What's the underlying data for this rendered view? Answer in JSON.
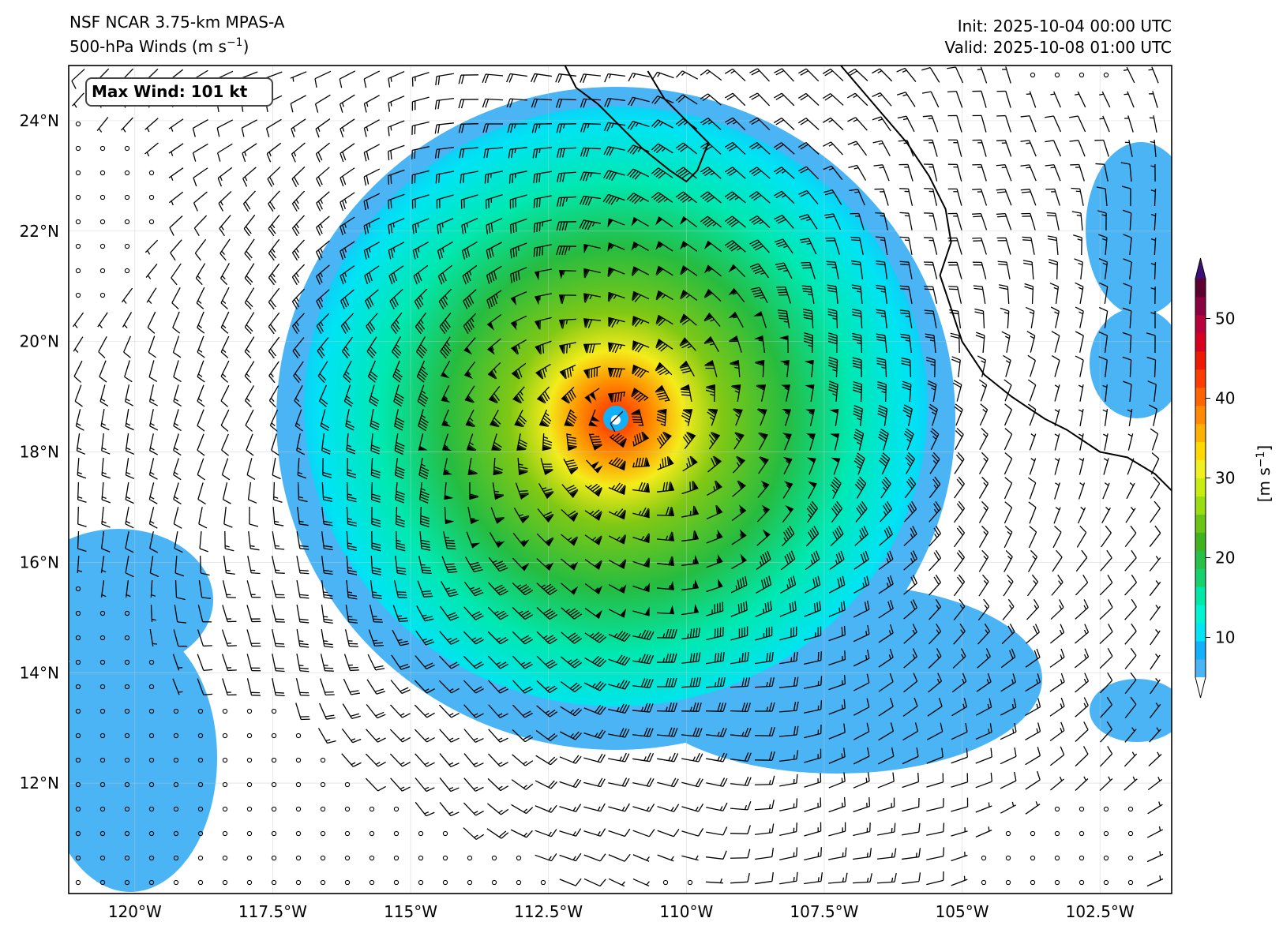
{
  "header": {
    "model": "NSF NCAR 3.75-km MPAS-A",
    "field_prefix": "500-hPa Winds (m s",
    "field_exp": "−1",
    "field_suffix": ")",
    "init": "Init: 2025-10-04 00:00 UTC",
    "valid": "Valid: 2025-10-08 01:00 UTC"
  },
  "annotation": {
    "max_wind": "Max Wind: 101 kt"
  },
  "map": {
    "lon_range": [
      -121.2,
      -101.2
    ],
    "lat_range": [
      10.0,
      25.0
    ],
    "lat_ticks": [
      {
        "lat": 24,
        "label": "24°N"
      },
      {
        "lat": 22,
        "label": "22°N"
      },
      {
        "lat": 20,
        "label": "20°N"
      },
      {
        "lat": 18,
        "label": "18°N"
      },
      {
        "lat": 16,
        "label": "16°N"
      },
      {
        "lat": 14,
        "label": "14°N"
      },
      {
        "lat": 12,
        "label": "12°N"
      }
    ],
    "lon_ticks": [
      {
        "lon": -120,
        "label": "120°W"
      },
      {
        "lon": -117.5,
        "label": "117.5°W"
      },
      {
        "lon": -115,
        "label": "115°W"
      },
      {
        "lon": -112.5,
        "label": "112.5°W"
      },
      {
        "lon": -110,
        "label": "110°W"
      },
      {
        "lon": -107.5,
        "label": "107.5°W"
      },
      {
        "lon": -105,
        "label": "105°W"
      },
      {
        "lon": -102.5,
        "label": "102.5°W"
      }
    ],
    "storm_center": {
      "lon": -111.1,
      "lat": 18.5
    },
    "baja_coast": [
      [
        -112.2,
        25.0
      ],
      [
        -112.0,
        24.6
      ],
      [
        -111.6,
        24.3
      ],
      [
        -111.2,
        23.9
      ],
      [
        -110.8,
        23.5
      ],
      [
        -110.3,
        23.1
      ],
      [
        -110.0,
        22.9
      ],
      [
        -109.8,
        23.1
      ],
      [
        -109.6,
        23.6
      ],
      [
        -110.0,
        24.0
      ],
      [
        -110.4,
        24.4
      ],
      [
        -110.7,
        24.9
      ]
    ],
    "mainland_coast": [
      [
        -107.2,
        25.0
      ],
      [
        -106.6,
        24.3
      ],
      [
        -106.0,
        23.6
      ],
      [
        -105.6,
        23.0
      ],
      [
        -105.3,
        22.4
      ],
      [
        -105.2,
        21.8
      ],
      [
        -105.4,
        21.2
      ],
      [
        -105.2,
        20.6
      ],
      [
        -105.0,
        20.0
      ],
      [
        -104.6,
        19.4
      ],
      [
        -104.1,
        19.0
      ],
      [
        -103.5,
        18.6
      ],
      [
        -103.1,
        18.4
      ],
      [
        -102.5,
        18.0
      ],
      [
        -102.0,
        17.9
      ],
      [
        -101.5,
        17.6
      ],
      [
        -101.2,
        17.3
      ]
    ]
  },
  "colorbar": {
    "label_prefix": "[m s",
    "label_exp": "−1",
    "label_suffix": "]",
    "min": 5,
    "max": 55,
    "ticks": [
      10,
      20,
      30,
      40,
      50
    ],
    "colors": [
      "#4ab4f5",
      "#12b0fa",
      "#00e4f4",
      "#00f4d2",
      "#00e8a8",
      "#16d26e",
      "#28c046",
      "#40b21e",
      "#6ac416",
      "#9ade12",
      "#c8ec10",
      "#f0f020",
      "#ffd800",
      "#ffb000",
      "#ff8a00",
      "#ff6400",
      "#ff3c00",
      "#ee1a00",
      "#d80020",
      "#b8003c",
      "#8a0040",
      "#5c0030"
    ],
    "over_color": "#3c1078",
    "under_color": "#ffffff"
  }
}
